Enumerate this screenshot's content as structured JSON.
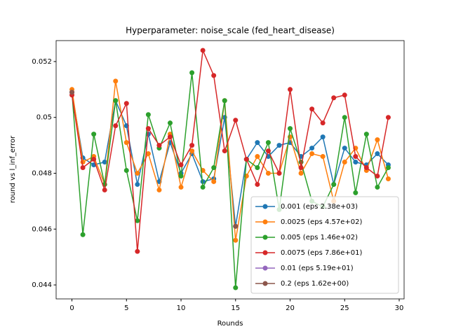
{
  "chart_data": {
    "type": "line",
    "title": "Hyperparameter: noise_scale (fed_heart_disease)",
    "xlabel": "Rounds",
    "ylabel": "round vs l_inf_error",
    "x": [
      0,
      1,
      2,
      3,
      4,
      5,
      6,
      7,
      8,
      9,
      10,
      11,
      12,
      13,
      14,
      15,
      16,
      17,
      18,
      19,
      20,
      21,
      22,
      23,
      24,
      25,
      26,
      27,
      28,
      29
    ],
    "series": [
      {
        "name": "0.001 (eps 2.38e+03)",
        "color": "#1f77b4",
        "values": [
          0.0509,
          0.04855,
          0.0483,
          0.0484,
          0.0506,
          0.0497,
          0.0476,
          0.0494,
          0.0477,
          0.0491,
          0.048,
          0.0487,
          0.0477,
          0.0478,
          0.05,
          0.0461,
          0.0485,
          0.0491,
          0.0486,
          0.049,
          0.0491,
          0.0486,
          0.0489,
          0.0493,
          0.0476,
          0.0489,
          0.0484,
          0.0483,
          0.0487,
          0.0483
        ]
      },
      {
        "name": "0.0025 (eps 4.57e+02)",
        "color": "#ff7f0e",
        "values": [
          0.051,
          0.0484,
          0.0486,
          0.0476,
          0.0513,
          0.0491,
          0.048,
          0.0487,
          0.0474,
          0.0494,
          0.0475,
          0.0488,
          0.0481,
          0.0477,
          0.0506,
          0.0456,
          0.0479,
          0.0486,
          0.048,
          0.048,
          0.0493,
          0.048,
          0.0487,
          0.0486,
          0.047,
          0.0484,
          0.0489,
          0.0481,
          0.0492,
          0.0478
        ]
      },
      {
        "name": "0.005 (eps 1.46e+02)",
        "color": "#2ca02c",
        "values": [
          0.0509,
          0.0458,
          0.0494,
          0.0476,
          0.0506,
          0.0481,
          0.0463,
          0.0501,
          0.0489,
          0.0498,
          0.0479,
          0.0516,
          0.0475,
          0.0482,
          0.0506,
          0.0439,
          0.0485,
          0.0482,
          0.0491,
          0.0467,
          0.0496,
          0.0484,
          0.047,
          0.0468,
          0.0476,
          0.05,
          0.0473,
          0.0494,
          0.0475,
          0.0482
        ]
      },
      {
        "name": "0.0075 (eps 7.86e+01)",
        "color": "#d62728",
        "values": [
          0.0508,
          0.0482,
          0.0485,
          0.0474,
          0.0497,
          0.0505,
          0.0452,
          0.0496,
          0.049,
          0.0493,
          0.0483,
          0.049,
          0.0524,
          0.0515,
          0.0488,
          0.0499,
          0.0485,
          0.0476,
          0.0488,
          0.048,
          0.051,
          0.0482,
          0.0503,
          0.0498,
          0.0507,
          0.0508,
          0.0486,
          0.0482,
          0.0479,
          0.05
        ]
      },
      {
        "name": "0.01 (eps 5.19e+01)",
        "color": "#9467bd",
        "values": [
          0.0509,
          null,
          null,
          null,
          null,
          null,
          null,
          null,
          null,
          null,
          null,
          null,
          null,
          null,
          null,
          0.0461,
          null,
          null,
          null,
          null,
          null,
          null,
          null,
          null,
          null,
          null,
          null,
          null,
          null,
          null
        ]
      },
      {
        "name": "0.2 (eps 1.62e+00)",
        "color": "#8c564b",
        "values": [
          0.0509,
          null,
          null,
          null,
          null,
          null,
          null,
          null,
          null,
          null,
          null,
          null,
          null,
          null,
          null,
          0.0461,
          null,
          null,
          null,
          null,
          null,
          null,
          null,
          null,
          null,
          null,
          null,
          null,
          null,
          null
        ]
      }
    ],
    "xlim": [
      -1.45,
      30.45
    ],
    "ylim": [
      0.0435,
      0.05275
    ],
    "xticks": [
      0,
      5,
      10,
      15,
      20,
      25,
      30
    ],
    "yticks": [
      0.044,
      0.046,
      0.048,
      0.05,
      0.052
    ],
    "legend": "lower right",
    "grid": false
  }
}
